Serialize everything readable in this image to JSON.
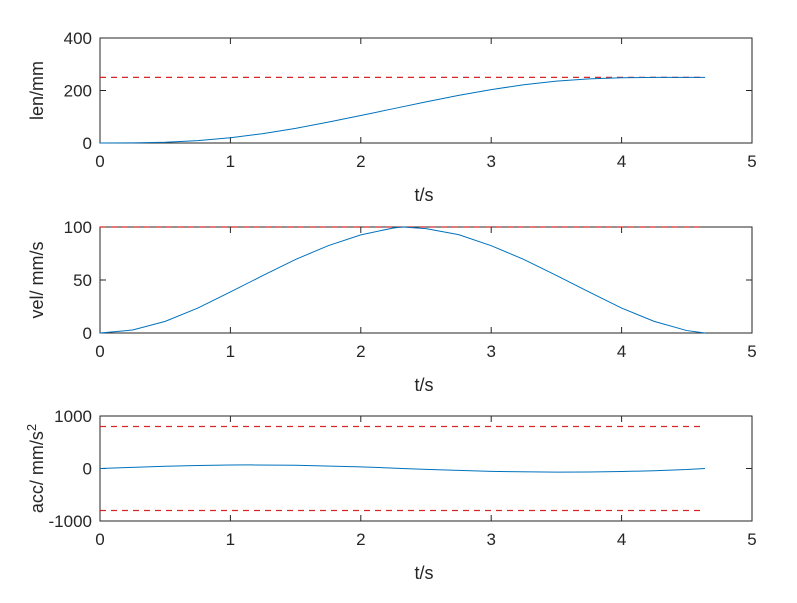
{
  "chart_data": [
    {
      "type": "line",
      "xlabel": "t/s",
      "ylabel": "len/mm",
      "xlim": [
        0,
        5
      ],
      "ylim": [
        0,
        400
      ],
      "xticks": [
        "0",
        "1",
        "2",
        "3",
        "4",
        "5"
      ],
      "yticks": [
        "0",
        "200",
        "400"
      ],
      "series": [
        {
          "color": "#0072BD",
          "x": [
            0,
            0.25,
            0.5,
            0.75,
            1.0,
            1.25,
            1.5,
            1.75,
            2.0,
            2.25,
            2.5,
            2.75,
            3.0,
            3.25,
            3.5,
            3.75,
            4.0,
            4.25,
            4.5,
            4.64
          ],
          "y": [
            0,
            0.4,
            2.8,
            8.9,
            19.8,
            35.7,
            55.9,
            79.5,
            104.6,
            130.7,
            156.7,
            181.4,
            203.4,
            222.0,
            235.7,
            244.3,
            248.7,
            250.0,
            250.0,
            250.0
          ]
        }
      ],
      "hlines": [
        {
          "y": 250,
          "color": "#D62728",
          "style": "dashed"
        }
      ]
    },
    {
      "type": "line",
      "xlabel": "t/s",
      "ylabel": "vel/ mm/s",
      "xlim": [
        0,
        5
      ],
      "ylim": [
        0,
        100
      ],
      "xticks": [
        "0",
        "1",
        "2",
        "3",
        "4",
        "5"
      ],
      "yticks": [
        "0",
        "50",
        "100"
      ],
      "series": [
        {
          "color": "#0072BD",
          "x": [
            0,
            0.25,
            0.5,
            0.75,
            1.0,
            1.25,
            1.5,
            1.75,
            2.0,
            2.25,
            2.32,
            2.5,
            2.75,
            3.0,
            3.25,
            3.5,
            3.75,
            4.0,
            4.25,
            4.5,
            4.64
          ],
          "y": [
            0,
            2.8,
            11.0,
            23.5,
            38.7,
            54.3,
            69.4,
            82.4,
            92.6,
            99.1,
            100,
            98.5,
            92.8,
            82.4,
            69.4,
            54.3,
            38.7,
            23.5,
            11.0,
            2.3,
            0
          ]
        }
      ],
      "hlines": [
        {
          "y": 100,
          "color": "#D62728",
          "style": "dashed"
        }
      ]
    },
    {
      "type": "line",
      "xlabel": "t/s",
      "ylabel": "acc/ mm/s",
      "ylabel_superscript": "2",
      "xlim": [
        0,
        5
      ],
      "ylim": [
        -1000,
        1000
      ],
      "xticks": [
        "0",
        "1",
        "2",
        "3",
        "4",
        "5"
      ],
      "yticks": [
        "-1000",
        "0",
        "1000"
      ],
      "series": [
        {
          "color": "#0072BD",
          "x": [
            0,
            0.25,
            0.5,
            0.75,
            1.0,
            1.16,
            1.5,
            2.0,
            2.32,
            2.5,
            3.0,
            3.5,
            3.75,
            4.0,
            4.25,
            4.5,
            4.64
          ],
          "y": [
            0,
            22,
            42,
            58,
            67,
            68,
            61,
            32,
            0,
            -17,
            -55,
            -68,
            -67,
            -58,
            -42,
            -20,
            0
          ]
        }
      ],
      "hlines": [
        {
          "y": 800,
          "color": "#D62728",
          "style": "dashed"
        },
        {
          "y": -800,
          "color": "#D62728",
          "style": "dashed"
        }
      ]
    }
  ]
}
